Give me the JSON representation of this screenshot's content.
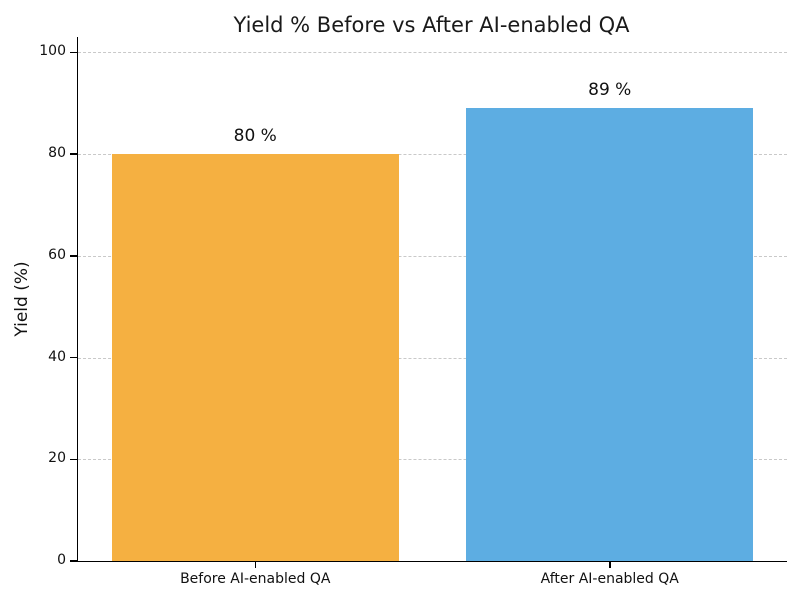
{
  "chart_data": {
    "type": "bar",
    "title": "Yield % Before vs After AI-enabled QA",
    "categories": [
      "Before AI-enabled QA",
      "After AI-enabled QA"
    ],
    "values": [
      80,
      89
    ],
    "value_labels": [
      "80 %",
      "89 %"
    ],
    "bar_colors": [
      "#f5b041",
      "#5dade2"
    ],
    "xlabel": "",
    "ylabel": "Yield (%)",
    "ylim": [
      0,
      103
    ],
    "yticks": [
      0,
      20,
      40,
      60,
      80,
      100
    ],
    "grid": "horizontal dashed",
    "grid_color": "#c9c9c9",
    "spine_color": "#000000",
    "text_color": "#111111",
    "background": "#ffffff",
    "legend": "none"
  }
}
